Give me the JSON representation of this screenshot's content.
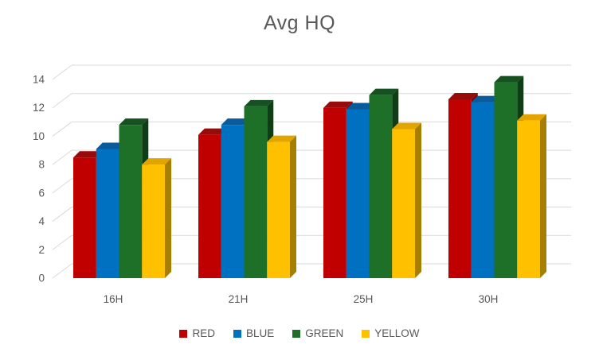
{
  "chart_data": {
    "type": "bar",
    "subtype": "3d-clustered-column",
    "title": "Avg HQ",
    "categories": [
      "16H",
      "21H",
      "25H",
      "30H"
    ],
    "series": [
      {
        "name": "RED",
        "color": "#C00000",
        "top_color": "#970B0B",
        "side_color": "#7E0000",
        "values": [
          8.5,
          10.1,
          12.0,
          12.6
        ]
      },
      {
        "name": "BLUE",
        "color": "#0070C0",
        "top_color": "#0A5B9C",
        "side_color": "#00518C",
        "values": [
          9.1,
          10.8,
          11.9,
          12.4
        ]
      },
      {
        "name": "GREEN",
        "color": "#1E7029",
        "top_color": "#175121",
        "side_color": "#0F3D16",
        "values": [
          10.8,
          12.1,
          12.9,
          13.8
        ]
      },
      {
        "name": "YELLOW",
        "color": "#FFC000",
        "top_color": "#E2A500",
        "side_color": "#A67E00",
        "values": [
          8.0,
          9.6,
          10.5,
          11.1
        ]
      }
    ],
    "ylim": [
      0,
      14
    ],
    "yticks": [
      0,
      2,
      4,
      6,
      8,
      10,
      12,
      14
    ],
    "xlabel": "",
    "ylabel": "",
    "grid": true,
    "legend_position": "bottom",
    "text_color": "#595959",
    "gridline_color": "#D9D9D9",
    "background_color": "#FFFFFF"
  }
}
